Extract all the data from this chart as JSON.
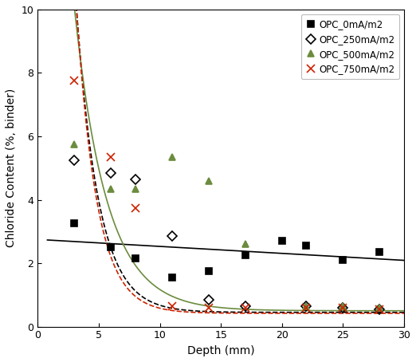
{
  "title": "",
  "xlabel": "Depth (mm)",
  "ylabel": "Chloride Content (%, binder)",
  "xlim": [
    0,
    30
  ],
  "ylim": [
    0,
    10
  ],
  "xticks": [
    0,
    5,
    10,
    15,
    20,
    25,
    30
  ],
  "yticks": [
    0,
    2,
    4,
    6,
    8,
    10
  ],
  "series": [
    {
      "label": "OPC_0mA/m2",
      "marker": "s",
      "color": "#000000",
      "markersize": 6,
      "markerfacecolor": "#000000",
      "markeredgecolor": "#000000",
      "x": [
        3,
        6,
        8,
        11,
        14,
        17,
        20,
        22,
        25,
        28
      ],
      "y": [
        3.25,
        2.5,
        2.15,
        1.55,
        1.75,
        2.25,
        2.7,
        2.55,
        2.1,
        2.35
      ]
    },
    {
      "label": "OPC_250mA/m2",
      "marker": "D",
      "color": "#000000",
      "markersize": 6,
      "markerfacecolor": "none",
      "markeredgecolor": "#000000",
      "x": [
        3,
        6,
        8,
        11,
        14,
        17,
        22,
        25,
        28
      ],
      "y": [
        5.25,
        4.85,
        4.65,
        2.85,
        0.85,
        0.65,
        0.65,
        0.6,
        0.55
      ]
    },
    {
      "label": "OPC_500mA/m2",
      "marker": "^",
      "color": "#6b8c3e",
      "markersize": 6,
      "markerfacecolor": "#6b8c3e",
      "markeredgecolor": "#6b8c3e",
      "x": [
        3,
        6,
        8,
        11,
        14,
        17,
        22,
        25,
        28
      ],
      "y": [
        5.75,
        4.35,
        4.35,
        5.35,
        4.6,
        2.6,
        0.65,
        0.65,
        0.6
      ]
    },
    {
      "label": "OPC_750mA/m2",
      "marker": "x",
      "color": "#cc2200",
      "markersize": 7,
      "markerfacecolor": "#cc2200",
      "markeredgecolor": "#cc2200",
      "x": [
        3,
        6,
        8,
        11,
        14,
        17,
        22,
        25,
        28
      ],
      "y": [
        7.75,
        5.35,
        3.75,
        0.65,
        0.6,
        0.6,
        0.6,
        0.6,
        0.55
      ]
    }
  ],
  "fit_curves": [
    {
      "color": "#000000",
      "linestyle": "-",
      "linewidth": 1.2,
      "type": "linear",
      "params": [
        2.75,
        -0.022
      ]
    },
    {
      "color": "#000000",
      "linestyle": "--",
      "linewidth": 1.2,
      "type": "exp_decay",
      "params": [
        55.0,
        0.55,
        0.45
      ]
    },
    {
      "color": "#6b8c3e",
      "linestyle": "-",
      "linewidth": 1.2,
      "type": "exp_decay",
      "params": [
        30.0,
        0.38,
        0.5
      ]
    },
    {
      "color": "#cc2200",
      "linestyle": "--",
      "linewidth": 1.2,
      "type": "exp_decay",
      "params": [
        65.0,
        0.6,
        0.42
      ]
    }
  ],
  "figsize": [
    5.22,
    4.54
  ],
  "dpi": 100,
  "background_color": "#ffffff"
}
